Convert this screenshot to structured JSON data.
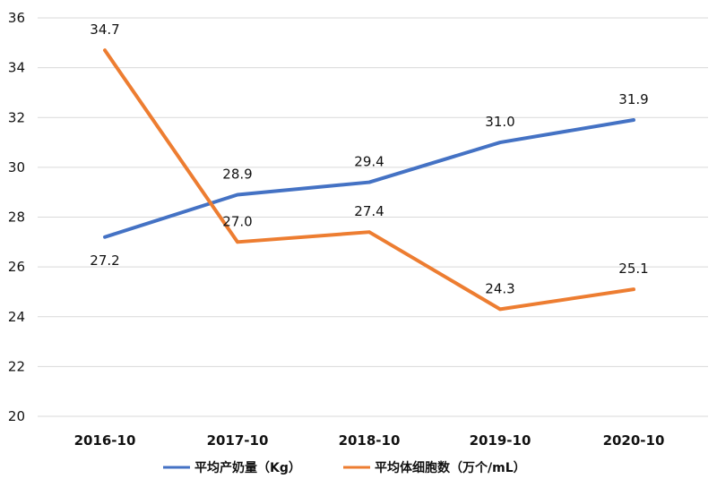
{
  "chart_data": {
    "type": "line",
    "categories": [
      "2016-10",
      "2017-10",
      "2018-10",
      "2019-10",
      "2020-10"
    ],
    "series": [
      {
        "name": "平均产奶量（Kg）",
        "values": [
          27.2,
          28.9,
          29.4,
          31.0,
          31.9
        ],
        "labels": [
          "27.2",
          "28.9",
          "29.4",
          "31.0",
          "31.9"
        ],
        "color": "#4472C4",
        "label_position": [
          "below",
          "above",
          "above",
          "above",
          "above"
        ]
      },
      {
        "name": "平均体细胞数（万个/mL）",
        "values": [
          34.7,
          27.0,
          27.4,
          24.3,
          25.1
        ],
        "labels": [
          "34.7",
          "27.0",
          "27.4",
          "24.3",
          "25.1"
        ],
        "color": "#ED7D31",
        "label_position": [
          "above",
          "above",
          "above",
          "above",
          "above"
        ]
      }
    ],
    "y_ticks": [
      "20",
      "22",
      "24",
      "26",
      "28",
      "30",
      "32",
      "34",
      "36"
    ],
    "ylim": [
      20,
      36
    ],
    "grid": true,
    "legend": "bottom"
  }
}
